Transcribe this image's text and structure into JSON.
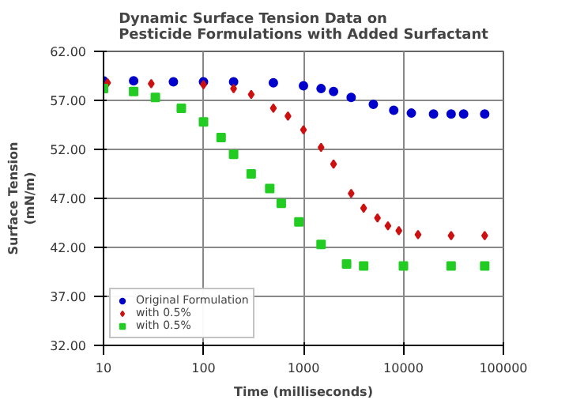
{
  "chart_data": {
    "type": "scatter",
    "title": "Dynamic Surface Tension Data on\nPesticide Formulations with Added Surfactant",
    "xlabel": "Time (milliseconds)",
    "ylabel": "Surface Tension\n(mN/m)",
    "log": "x",
    "xlim": [
      10,
      100000
    ],
    "xticks": [
      10,
      100,
      1000,
      10000,
      100000
    ],
    "ylim": [
      32,
      62
    ],
    "yticks": [
      {
        "value": 32,
        "label": "32.00"
      },
      {
        "value": 37,
        "label": "37.00"
      },
      {
        "value": 42,
        "label": "42.00"
      },
      {
        "value": 47,
        "label": "47.00"
      },
      {
        "value": 52,
        "label": "52.00"
      },
      {
        "value": 57,
        "label": "57.00"
      },
      {
        "value": 62,
        "label": "62.00"
      }
    ],
    "grid": true,
    "legend": "bottom left",
    "series": [
      {
        "name": "Original Formulation",
        "color": "#0000cc",
        "marker": "circle",
        "x": [
          10,
          20,
          50,
          100,
          200,
          500,
          1000,
          1500,
          2000,
          3000,
          5000,
          8000,
          12000,
          20000,
          30000,
          40000,
          65000
        ],
        "values": [
          59,
          59,
          58.9,
          58.9,
          58.9,
          58.8,
          58.5,
          58.2,
          57.9,
          57.3,
          56.6,
          56,
          55.7,
          55.6,
          55.6,
          55.6,
          55.6
        ]
      },
      {
        "name": "with 0.5%",
        "color": "#cc1111",
        "marker": "diamond",
        "x": [
          11,
          30,
          100,
          200,
          300,
          500,
          700,
          1000,
          1500,
          2000,
          3000,
          4000,
          5500,
          7000,
          9000,
          14000,
          30000,
          65000
        ],
        "values": [
          58.8,
          58.7,
          58.6,
          58.2,
          57.6,
          56.2,
          55.4,
          54,
          52.2,
          50.5,
          47.5,
          46,
          45,
          44.2,
          43.7,
          43.3,
          43.2,
          43.2
        ]
      },
      {
        "name": "with 0.5%",
        "color": "#22cc22",
        "marker": "square",
        "x": [
          10,
          20,
          33,
          60,
          100,
          150,
          200,
          300,
          460,
          600,
          900,
          1500,
          2700,
          4000,
          10000,
          30000,
          65000
        ],
        "values": [
          58.2,
          57.9,
          57.3,
          56.2,
          54.8,
          53.2,
          51.5,
          49.5,
          48,
          46.5,
          44.6,
          42.3,
          40.3,
          40.1,
          40.1,
          40.1,
          40.1
        ]
      }
    ]
  }
}
